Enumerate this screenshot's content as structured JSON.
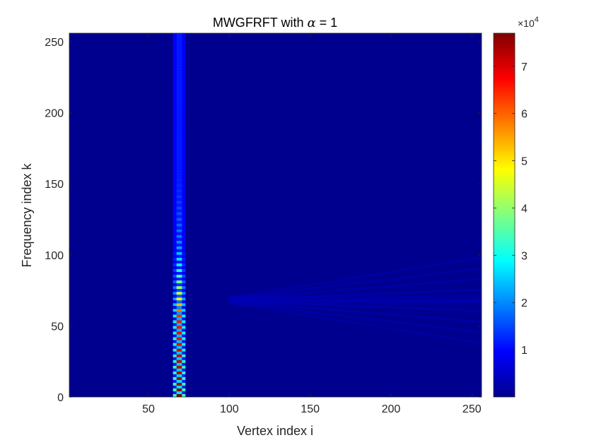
{
  "chart_data": {
    "type": "heatmap",
    "title": {
      "prefix": "MWGFRFT with ",
      "symbol": "α",
      "suffix": " = 1"
    },
    "xlabel": "Vertex index i",
    "ylabel": "Frequency index k",
    "xlim": [
      1,
      256
    ],
    "ylim": [
      0,
      256
    ],
    "xticks": [
      50,
      100,
      150,
      200,
      250
    ],
    "yticks": [
      0,
      50,
      100,
      150,
      200,
      250
    ],
    "colormap": "jet",
    "colorbar": {
      "range": [
        0,
        77000
      ],
      "ticks": [
        1,
        2,
        3,
        4,
        5,
        6,
        7
      ],
      "tick_labels": [
        "1",
        "2",
        "3",
        "4",
        "5",
        "6",
        "7"
      ],
      "multiplier_base": "×10",
      "multiplier_exponent": "4"
    },
    "features": {
      "main_ridge": {
        "vertex_center": 69,
        "vertex_halfwidth": 3,
        "frequency_range": [
          0,
          256
        ],
        "band_period": 4,
        "peak_value": 77000,
        "peak_frequency_range": [
          0,
          55
        ]
      },
      "faint_fan": {
        "vertex_range": [
          100,
          256
        ],
        "frequency_center": 68,
        "frequency_spread_at_end": 30,
        "approx_value": 4000
      }
    }
  }
}
